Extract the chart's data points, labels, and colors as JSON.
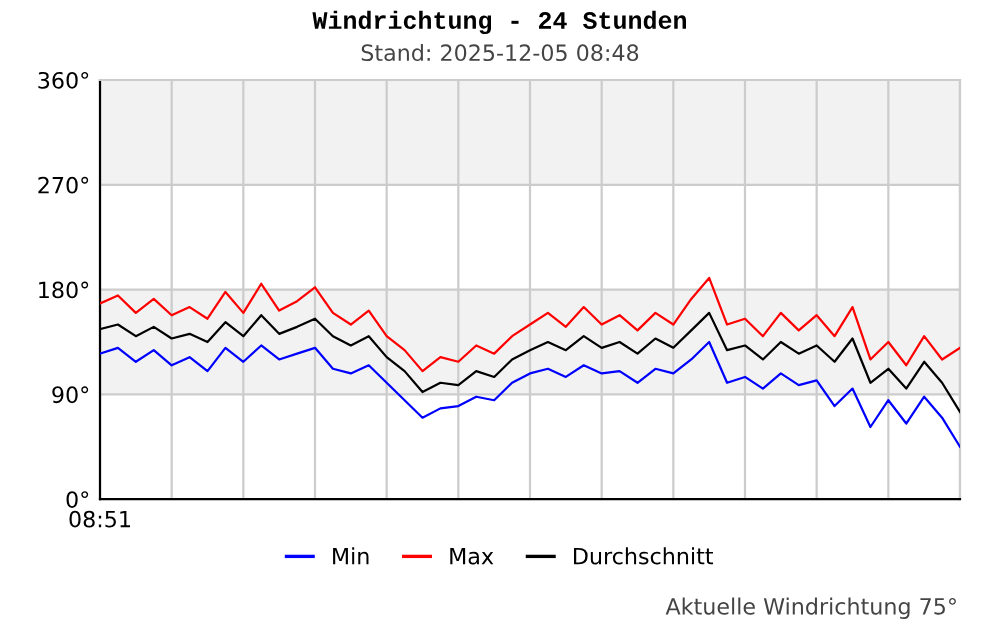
{
  "chart_data": {
    "type": "line",
    "title": "Windrichtung - 24 Stunden",
    "subtitle": "Stand: 2025-12-05 08:48",
    "categories": [
      null,
      null,
      null,
      null,
      null,
      null,
      null,
      null,
      null,
      null,
      null,
      null,
      null,
      null,
      null,
      null,
      null,
      null,
      null,
      null,
      null,
      null,
      null,
      null,
      null,
      null,
      null,
      null,
      null,
      null,
      null,
      null,
      null,
      null,
      null,
      null,
      null,
      null,
      null,
      null,
      null,
      null,
      null,
      null,
      null,
      null,
      null,
      null,
      null
    ],
    "series": [
      {
        "name": "Min",
        "color": "#0000ff",
        "values": [
          125,
          130,
          118,
          128,
          115,
          122,
          110,
          130,
          118,
          132,
          120,
          125,
          130,
          112,
          108,
          115,
          100,
          85,
          70,
          78,
          80,
          88,
          85,
          100,
          108,
          112,
          105,
          115,
          108,
          110,
          100,
          112,
          108,
          120,
          135,
          100,
          105,
          95,
          108,
          98,
          102,
          80,
          95,
          62,
          85,
          65,
          88,
          70,
          45
        ]
      },
      {
        "name": "Max",
        "color": "#ff0000",
        "values": [
          168,
          175,
          160,
          172,
          158,
          165,
          155,
          178,
          160,
          185,
          162,
          170,
          182,
          160,
          150,
          162,
          140,
          128,
          110,
          122,
          118,
          132,
          125,
          140,
          150,
          160,
          148,
          165,
          150,
          158,
          145,
          160,
          150,
          172,
          190,
          150,
          155,
          140,
          160,
          145,
          158,
          140,
          165,
          120,
          135,
          115,
          140,
          120,
          130
        ]
      },
      {
        "name": "Durchschnitt",
        "color": "#000000",
        "values": [
          146,
          150,
          140,
          148,
          138,
          142,
          135,
          152,
          140,
          158,
          142,
          148,
          155,
          140,
          132,
          140,
          122,
          110,
          92,
          100,
          98,
          110,
          105,
          120,
          128,
          135,
          128,
          140,
          130,
          135,
          125,
          138,
          130,
          145,
          160,
          128,
          132,
          120,
          135,
          125,
          132,
          118,
          138,
          100,
          112,
          95,
          118,
          100,
          75
        ]
      }
    ],
    "ylim": [
      0,
      360
    ],
    "yticks": [
      {
        "value": 0,
        "label": "0°"
      },
      {
        "value": 90,
        "label": "90°"
      },
      {
        "value": 180,
        "label": "180°"
      },
      {
        "value": 270,
        "label": "270°"
      },
      {
        "value": 360,
        "label": "360°"
      }
    ],
    "bands": [
      {
        "axis": "y",
        "from": 90,
        "to": 180,
        "color": "#f2f2f2"
      },
      {
        "axis": "y",
        "from": 270,
        "to": 360,
        "color": "#f2f2f2"
      }
    ],
    "grid": true,
    "legend": "bottom",
    "annotations": [
      "08:51",
      "Aktuelle Windrichtung 75°"
    ]
  }
}
